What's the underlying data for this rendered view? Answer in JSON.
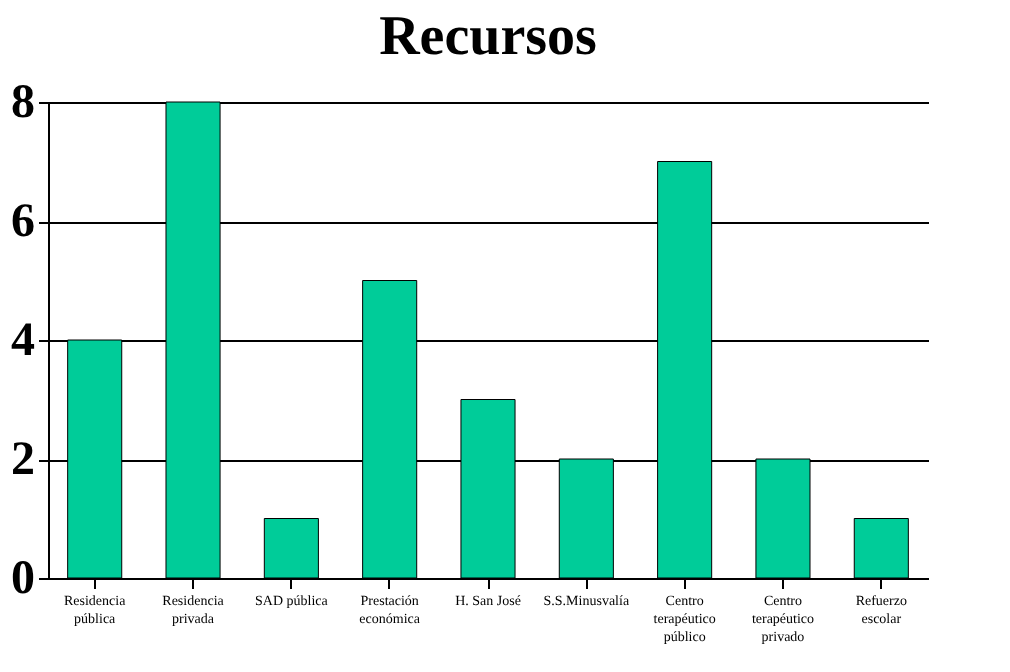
{
  "chart_data": {
    "type": "bar",
    "title": "Recursos",
    "categories": [
      "Residencia pública",
      "Residencia privada",
      "SAD pública",
      "Prestación económica",
      "H. San José",
      "S.S.Minusvalía",
      "Centro terapéutico público",
      "Centro terapéutico privado",
      "Refuerzo escolar"
    ],
    "values": [
      4,
      8,
      1,
      5,
      3,
      2,
      7,
      2,
      1
    ],
    "color": "#00cc99",
    "ylim": [
      0,
      8
    ],
    "yticks": [
      0,
      2,
      4,
      6,
      8
    ],
    "grid": "y"
  }
}
